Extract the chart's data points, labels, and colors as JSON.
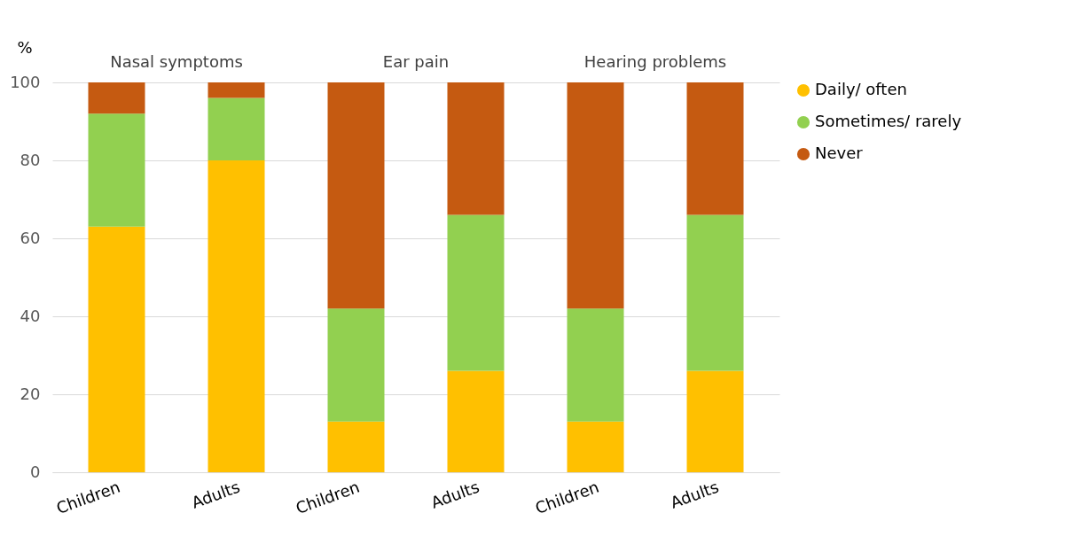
{
  "chart_data": {
    "type": "bar",
    "stacked": true,
    "ylabel": "%",
    "categories": [
      "Children",
      "Adults",
      "Children",
      "Adults",
      "Children",
      "Adults"
    ],
    "series": [
      {
        "name": "Daily/ often",
        "color": "#ffc000",
        "values": [
          63,
          80,
          13,
          26,
          13,
          26
        ]
      },
      {
        "name": "Sometimes/ rarely",
        "color": "#92d050",
        "values": [
          29,
          16,
          29,
          40,
          29,
          40
        ]
      },
      {
        "name": "Never",
        "color": "#c55a11",
        "values": [
          8,
          4,
          58,
          34,
          58,
          34
        ]
      }
    ],
    "annotations": [
      "Nasal symptoms",
      "Ear pain",
      "Hearing problems"
    ],
    "ylim": [
      0,
      100
    ],
    "yticks": [
      0,
      20,
      40,
      60,
      80,
      100
    ],
    "grid": "y",
    "legend": "right"
  }
}
